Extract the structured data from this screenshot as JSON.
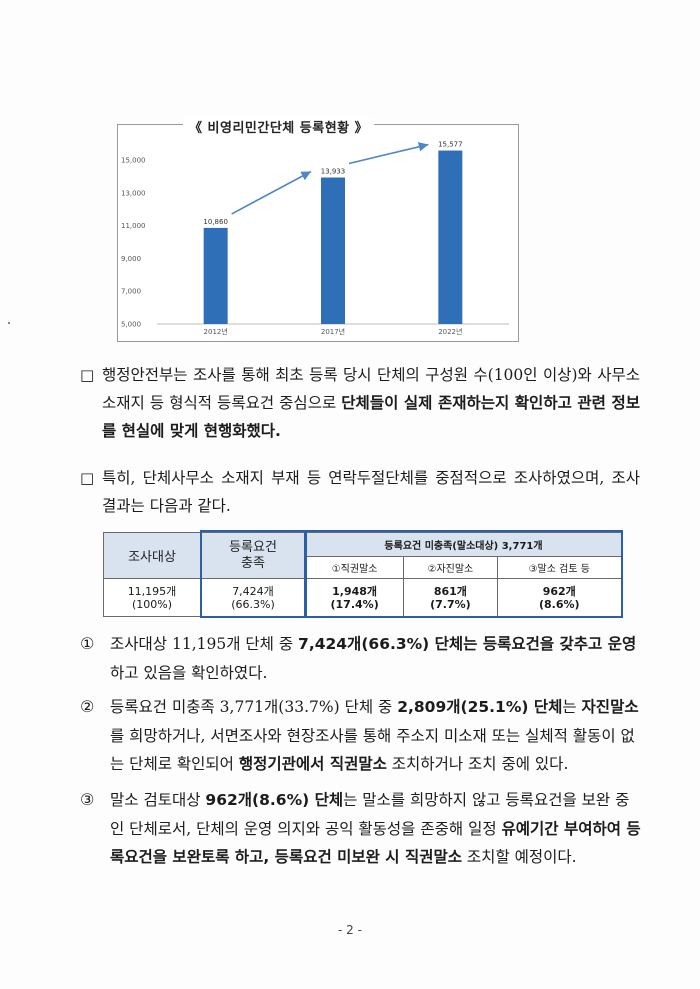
{
  "chart_title": "《 비영리민간단체 등록현황 》",
  "chart_data": {
    "type": "bar",
    "title": "《 비영리민간단체 등록현황 》",
    "categories": [
      "2012년",
      "2017년",
      "2022년"
    ],
    "values": [
      10860,
      13933,
      15577
    ],
    "data_labels": [
      "10,860",
      "13,933",
      "15,577"
    ],
    "ylim": [
      5000,
      15000
    ],
    "yticks": [
      5000,
      7000,
      9000,
      11000,
      13000,
      15000
    ],
    "ytick_labels": [
      "5,000",
      "7,000",
      "9,000",
      "11,000",
      "13,000",
      "15,000"
    ],
    "bar_color": "#2f6fb7",
    "arrow_color": "#4f86c6"
  },
  "para1": {
    "bullet": "□",
    "text_a": "행정안전부는 조사를 통해 최초 등록 당시 단체의 구성원 수(100인 이상)와 사무소 소재지 등 형식적 등록요건 중심으로 ",
    "text_b": "단체들이 실제 존재하는지 확인하고 관련 정보를 현실에 맞게 현행화했다."
  },
  "para2": {
    "bullet": "□",
    "text": "특히, 단체사무소 소재지 부재 등 연락두절단체를 중점적으로 조사하였으며, 조사 결과는 다음과 같다."
  },
  "table": {
    "h_survey": "조사대상",
    "h_met_1": "등록요건",
    "h_met_2": "충족",
    "h_unmet": "등록요건 미충족(말소대상) 3,771개",
    "h_sub1": "①직권말소",
    "h_sub2": "②자진말소",
    "h_sub3": "③말소 검토 등",
    "v_survey_1": "11,195개",
    "v_survey_2": "(100%)",
    "v_met_1": "7,424개",
    "v_met_2": "(66.3%)",
    "v_sub1_1": "1,948개",
    "v_sub1_2": "(17.4%)",
    "v_sub2_1": "861개",
    "v_sub2_2": "(7.7%)",
    "v_sub3_1": "962개",
    "v_sub3_2": "(8.6%)"
  },
  "item1": {
    "num": "①",
    "a": "조사대상 11,195개 단체 중 ",
    "b": "7,424개(66.3%) 단체는 등록요건을 갖추고 운영",
    "c": "하고 있음을 확인하였다."
  },
  "item2": {
    "num": "②",
    "a": "등록요건 미충족 3,771개(33.7%) 단체 중 ",
    "b": "2,809개(25.1%) 단체",
    "c": "는 ",
    "d": "자진말소",
    "e": "를 희망하거나, 서면조사와 현장조사를 통해 주소지 미소재 또는 실체적 활동이 없는 단체로 확인되어 ",
    "f": "행정기관에서 직권말소",
    "g": " 조치하거나 조치 중에 있다."
  },
  "item3": {
    "num": "③",
    "a": "말소 검토대상 ",
    "b": "962개(8.6%) 단체",
    "c": "는 말소를 희망하지 않고 등록요건을 보완 중인 단체로서, 단체의 운영 의지와 공익 활동성을 존중해 일정 ",
    "d": "유예기간 부여하여 등록요건을 보완토록 하고, 등록요건 미보완 시 직권말소",
    "e": " 조치할 예정이다."
  },
  "page_number": "- 2 -"
}
